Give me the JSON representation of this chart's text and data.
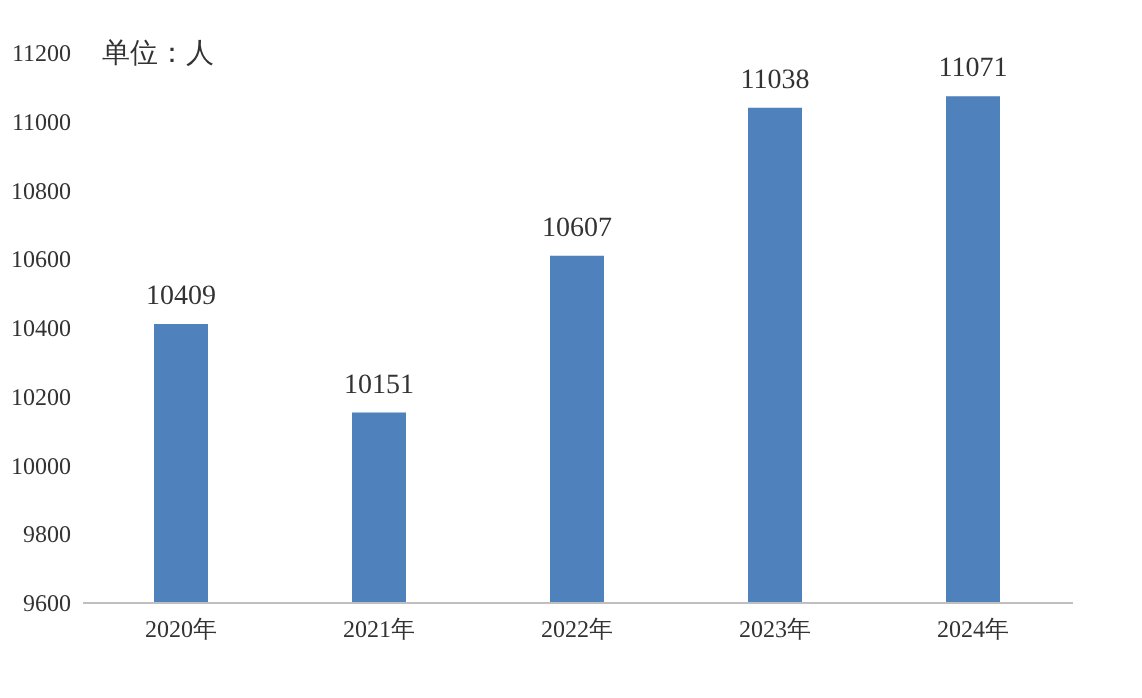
{
  "chart_data": {
    "type": "bar",
    "categories": [
      "2020年",
      "2021年",
      "2022年",
      "2023年",
      "2024年"
    ],
    "values": [
      10409,
      10151,
      10607,
      11038,
      11071
    ],
    "color": "#4f81bd",
    "ylim": [
      9600,
      11200
    ],
    "yticks": [
      9600,
      9800,
      10000,
      10200,
      10400,
      10600,
      10800,
      11000,
      11200
    ],
    "grid": false,
    "data_labels": true,
    "annotations": [
      "单位：人"
    ]
  }
}
